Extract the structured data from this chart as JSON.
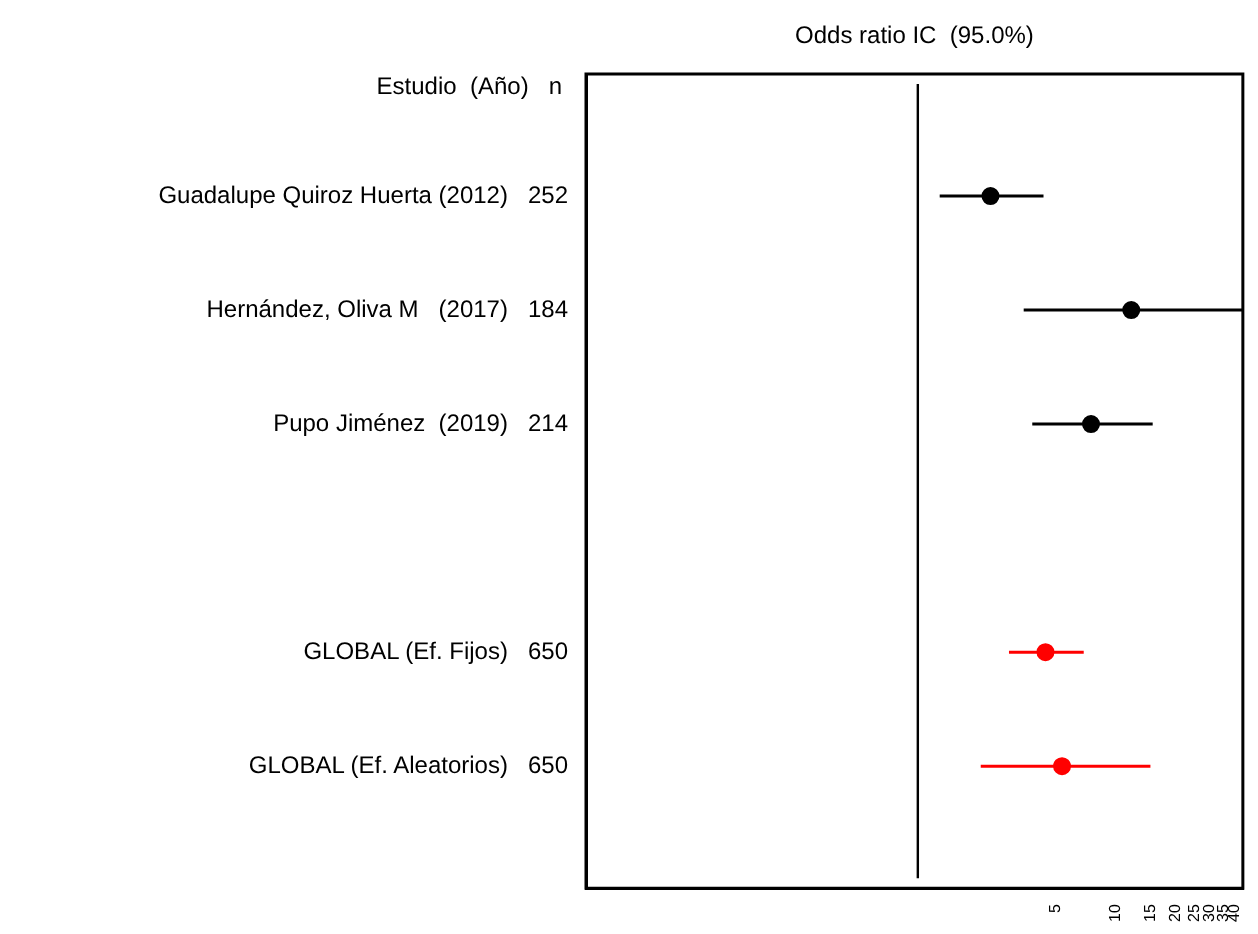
{
  "chart_data": {
    "type": "scatter",
    "orientation": "horizontal",
    "title": "Odds ratio IC  (95.0%)",
    "ylabel": "Estudio  (Año)   n",
    "categories": [
      "Guadalupe Quiroz Huerta (2012)   252",
      "Hernández, Oliva M   (2017)   184",
      "Pupo Jiménez  (2019)   214",
      null,
      "GLOBAL (Ef. Fijos)   650",
      "GLOBAL (Ef. Aleatorios)   650"
    ],
    "series": [
      {
        "color": "#000000",
        "values": [
          2.33,
          12.0,
          7.51,
          null,
          null,
          null
        ],
        "errors": [
          [
            1.29,
            4.32
          ],
          [
            3.43,
            44
          ],
          [
            3.79,
            15.4
          ],
          null,
          null,
          null
        ]
      },
      {
        "color": "#ff0000",
        "values": [
          null,
          null,
          null,
          null,
          4.42,
          5.36
        ],
        "errors": [
          null,
          null,
          null,
          null,
          [
            2.89,
            6.9
          ],
          [
            2.08,
            15.0
          ]
        ]
      }
    ],
    "log": "x",
    "xlim": [
      0.021,
      44
    ],
    "xticks": [
      5,
      10,
      15,
      20,
      25,
      30,
      35,
      40
    ],
    "ref_lines": [
      {
        "axis": "x",
        "value": 1,
        "color": "#000000"
      }
    ],
    "marker": "circle",
    "legend": false,
    "grid": false
  }
}
